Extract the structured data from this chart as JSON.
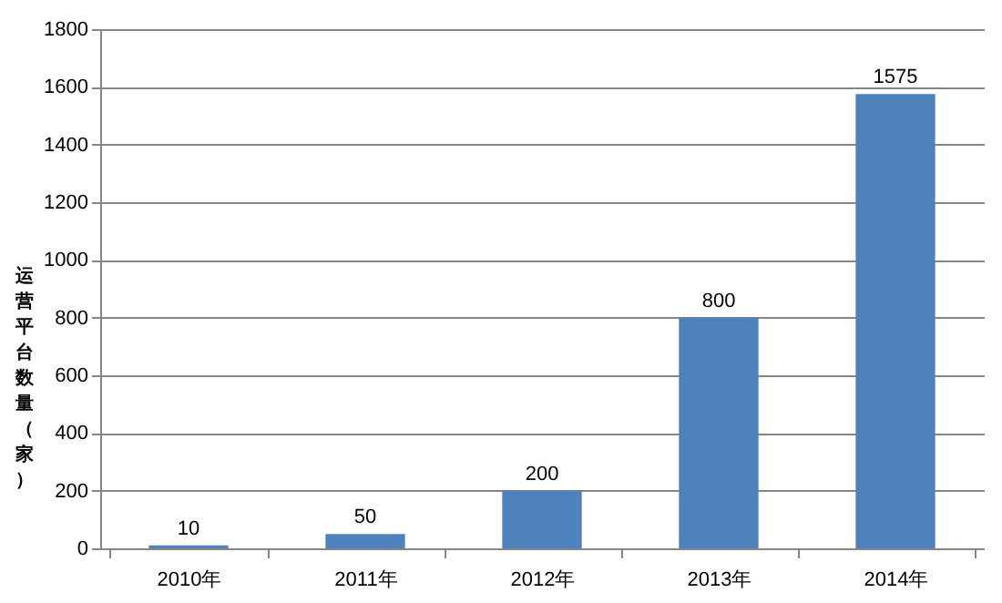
{
  "chart_data": {
    "type": "bar",
    "ylabel": "运营平台数量（家）",
    "categories": [
      "2010年",
      "2011年",
      "2012年",
      "2013年",
      "2014年"
    ],
    "values": [
      10,
      50,
      200,
      800,
      1575
    ],
    "color": "#4f81bd",
    "ylim": [
      0,
      1800
    ],
    "yticks": [
      0,
      200,
      400,
      600,
      800,
      1000,
      1200,
      1400,
      1600,
      1800
    ],
    "grid": "y",
    "data_labels": true
  }
}
